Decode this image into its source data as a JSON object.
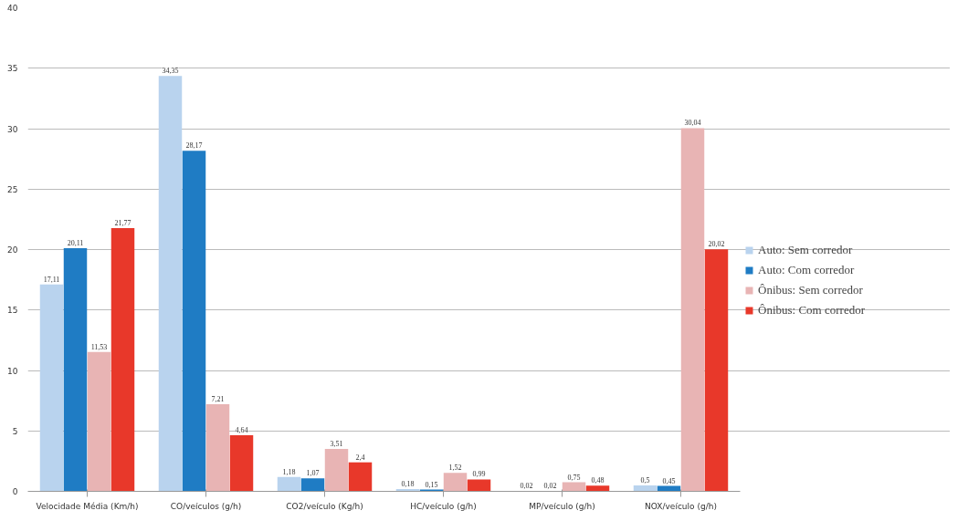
{
  "chart_data": {
    "type": "bar",
    "categories": [
      "Velocidade Média (Km/h)",
      "CO/veículos (g/h)",
      "CO2/veículo (Kg/h)",
      "HC/veículo (g/h)",
      "MP/veículo (g/h)",
      "NOX/veículo (g/h)"
    ],
    "series": [
      {
        "name": "Auto: Sem corredor",
        "color": "#b9d3ee",
        "values": [
          17.11,
          34.35,
          1.18,
          0.18,
          0.02,
          0.5
        ],
        "value_labels": [
          "17,11",
          "34,35",
          "1,18",
          "0,18",
          "0,02",
          "0,5"
        ]
      },
      {
        "name": "Auto: Com corredor",
        "color": "#1f7cc4",
        "values": [
          20.11,
          28.17,
          1.07,
          0.15,
          0.02,
          0.45
        ],
        "value_labels": [
          "20,11",
          "28,17",
          "1,07",
          "0,15",
          "0,02",
          "0,45"
        ]
      },
      {
        "name": "Ônibus: Sem corredor",
        "color": "#e8b4b4",
        "values": [
          11.53,
          7.21,
          3.51,
          1.52,
          0.75,
          30.04
        ],
        "value_labels": [
          "11,53",
          "7,21",
          "3,51",
          "1,52",
          "0,75",
          "30,04"
        ]
      },
      {
        "name": "Ônibus: Com corredor",
        "color": "#e8382a",
        "values": [
          21.77,
          4.64,
          2.4,
          0.99,
          0.48,
          20.02
        ],
        "value_labels": [
          "21,77",
          "4,64",
          "2,4",
          "0,99",
          "0,48",
          "20,02"
        ]
      }
    ],
    "ylim": [
      0,
      40
    ],
    "yticks": [
      0,
      5,
      10,
      15,
      20,
      25,
      30,
      35,
      40
    ],
    "grid": "y",
    "legend": "right"
  }
}
